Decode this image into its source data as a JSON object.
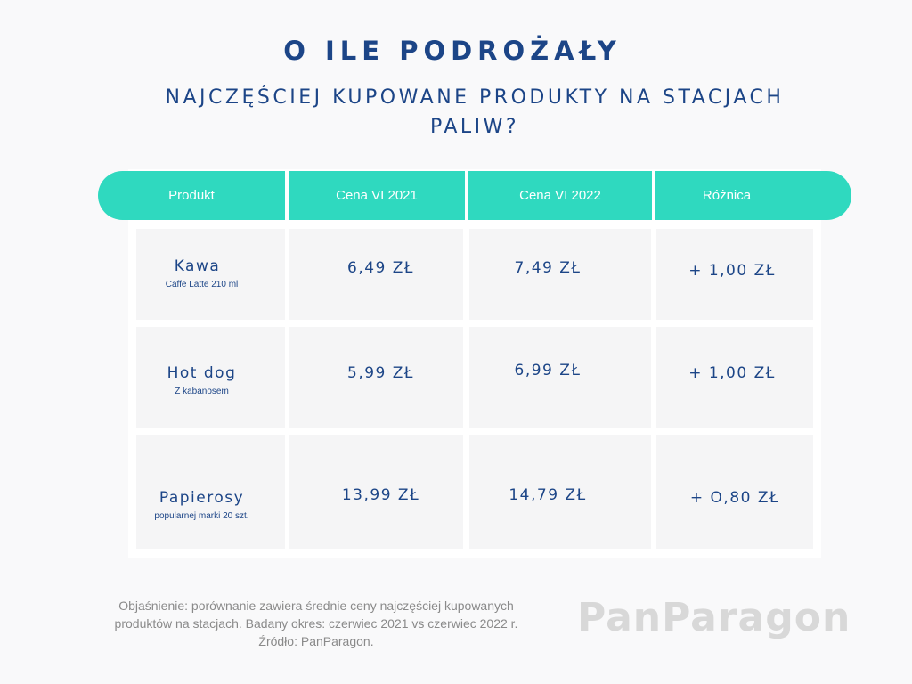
{
  "title": "O ILE PODROŻAŁY",
  "subtitle": "NAJCZĘŚCIEJ KUPOWANE PRODUKTY NA STACJACH PALIW?",
  "table": {
    "headers": [
      "Produkt",
      "Cena VI 2021",
      "Cena VI 2022",
      "Różnica"
    ],
    "rows": [
      {
        "name": "Kawa",
        "desc": "Caffe Latte 210 ml",
        "price_2021": "6,49 ZŁ",
        "price_2022": "7,49 ZŁ",
        "diff": "+ 1,00 ZŁ"
      },
      {
        "name": "Hot dog",
        "desc": "Z kabanosem",
        "price_2021": "5,99 ZŁ",
        "price_2022": "6,99 ZŁ",
        "diff": "+ 1,00 ZŁ"
      },
      {
        "name": "Papierosy",
        "desc": "popularnej marki 20 szt.",
        "price_2021": "13,99 ZŁ",
        "price_2022": "14,79 ZŁ",
        "diff": "+ O,80 ZŁ"
      }
    ]
  },
  "footer": {
    "note_line1": "Objaśnienie: porównanie zawiera średnie ceny najczęściej kupowanych",
    "note_line2": "produktów na stacjach. Badany okres: czerwiec 2021 vs czerwiec 2022 r.",
    "note_line3": "Źródło: PanParagon.",
    "brand": "PanParagon"
  },
  "colors": {
    "title": "#1c4587",
    "header_bg": "#2fd9bf",
    "cell_bg": "#f5f5f6",
    "brand": "#d8d8d8"
  }
}
